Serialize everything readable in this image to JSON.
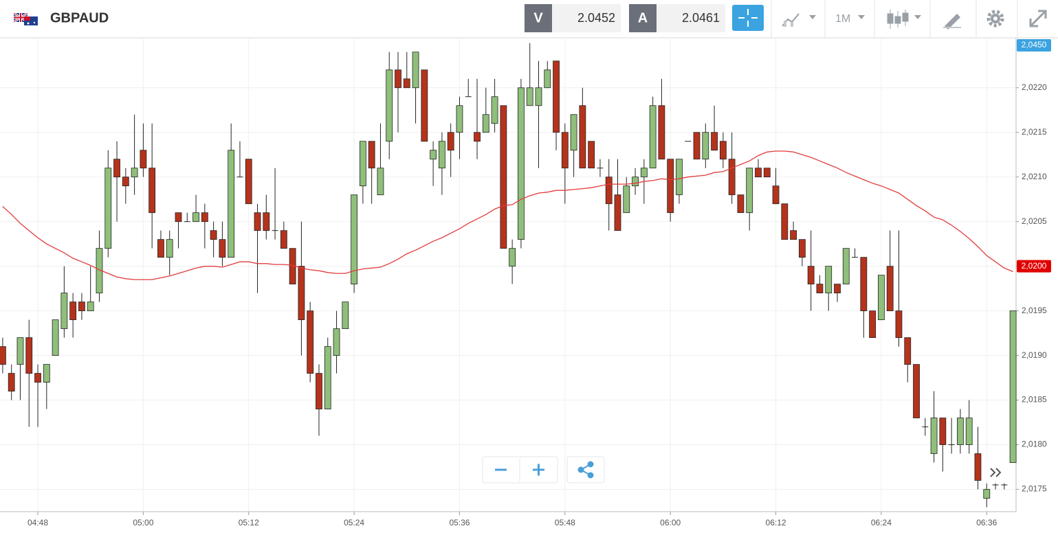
{
  "header": {
    "symbol": "GBPAUD",
    "sell_label": "V",
    "sell_price": 2.0452,
    "buy_label": "A",
    "buy_price": 2.0461,
    "timeframe": "1M"
  },
  "chart_data": {
    "type": "candlestick",
    "categories": [
      null,
      null,
      null,
      null,
      "04:48",
      null,
      null,
      null,
      null,
      null,
      null,
      null,
      null,
      null,
      null,
      null,
      "05:00",
      null,
      null,
      null,
      null,
      null,
      null,
      null,
      null,
      null,
      null,
      null,
      "05:12",
      null,
      null,
      null,
      null,
      null,
      null,
      null,
      null,
      null,
      null,
      null,
      "05:24",
      null,
      null,
      null,
      null,
      null,
      null,
      null,
      null,
      null,
      null,
      null,
      "05:36",
      null,
      null,
      null,
      null,
      null,
      null,
      null,
      null,
      null,
      null,
      null,
      "05:48",
      null,
      null,
      null,
      null,
      null,
      null,
      null,
      null,
      null,
      null,
      null,
      "06:00",
      null,
      null,
      null,
      null,
      null,
      null,
      null,
      null,
      null,
      null,
      null,
      "06:12",
      null,
      null,
      null,
      null,
      null,
      null,
      null,
      null,
      null,
      null,
      null,
      "06:24",
      null,
      null,
      null,
      null,
      null,
      null,
      null,
      null,
      null,
      null,
      null,
      "06:36",
      null,
      null,
      null
    ],
    "open": [
      2.0191,
      2.0188,
      2.0189,
      2.0192,
      2.0188,
      2.0187,
      2.019,
      2.0193,
      2.0196,
      2.0196,
      2.0195,
      2.0197,
      2.0202,
      2.0212,
      2.021,
      2.021,
      2.0213,
      2.0211,
      2.0203,
      2.0201,
      2.0206,
      2.0205,
      2.0205,
      2.0206,
      2.0204,
      2.0203,
      2.0201,
      2.021,
      2.0212,
      2.0206,
      2.0206,
      2.0204,
      2.0204,
      2.0202,
      2.02,
      2.0195,
      2.0188,
      2.0184,
      2.019,
      2.0193,
      2.0198,
      2.0209,
      2.0214,
      2.0208,
      2.0214,
      2.0222,
      2.0221,
      2.022,
      2.0222,
      2.0212,
      2.0211,
      2.0215,
      2.0215,
      2.0219,
      2.0215,
      2.0215,
      2.0216,
      2.0218,
      2.02,
      2.0203,
      2.0218,
      2.0218,
      2.022,
      2.0223,
      2.0215,
      2.0213,
      2.0218,
      2.0214,
      2.0211,
      2.021,
      2.0208,
      2.0206,
      2.0209,
      2.021,
      2.0211,
      2.0218,
      2.0212,
      2.0208,
      2.0214,
      2.0215,
      2.0212,
      2.0215,
      2.0214,
      2.0212,
      2.0208,
      2.0206,
      2.0211,
      2.0211,
      2.0209,
      2.0207,
      2.0204,
      2.0203,
      2.02,
      2.0198,
      2.0197,
      2.0198,
      2.0198,
      2.0201,
      2.0201,
      2.0195,
      2.0194,
      2.02,
      2.0195,
      2.0192,
      2.0189,
      2.0182,
      2.0179,
      2.0183,
      2.018,
      2.018,
      2.018,
      2.0179,
      2.0174,
      2.01755,
      2.01755,
      2.0178
    ],
    "high": [
      2.0192,
      2.0189,
      2.0192,
      2.0194,
      2.0189,
      2.0189,
      2.0194,
      2.02,
      2.0197,
      2.0197,
      2.02,
      2.0204,
      2.0213,
      2.0214,
      2.0211,
      2.0217,
      2.0216,
      2.0216,
      2.0204,
      2.0204,
      2.0206,
      2.0206,
      2.0208,
      2.0207,
      2.0205,
      2.0205,
      2.0216,
      2.0214,
      2.0212,
      2.0207,
      2.0208,
      2.0211,
      2.0205,
      2.0202,
      2.0205,
      2.0196,
      2.0189,
      2.0192,
      2.0195,
      2.0196,
      2.0208,
      2.0214,
      2.0214,
      2.0216,
      2.0224,
      2.0224,
      2.0224,
      2.0224,
      2.0222,
      2.0214,
      2.0215,
      2.0216,
      2.0219,
      2.0221,
      2.0221,
      2.022,
      2.0221,
      2.0218,
      2.0203,
      2.0221,
      2.0225,
      2.0223,
      2.0223,
      2.0223,
      2.0216,
      2.0217,
      2.022,
      2.0214,
      2.0212,
      2.0212,
      2.0212,
      2.021,
      2.0211,
      2.0212,
      2.0219,
      2.0221,
      2.0212,
      2.0212,
      2.0214,
      2.0215,
      2.0216,
      2.0218,
      2.0215,
      2.0215,
      2.0208,
      2.0211,
      2.0212,
      2.0211,
      2.0211,
      2.0207,
      2.0205,
      2.0203,
      2.0204,
      2.0199,
      2.02,
      2.0198,
      2.0202,
      2.0202,
      2.0201,
      2.0195,
      2.0199,
      2.0204,
      2.0204,
      2.0192,
      2.0189,
      2.0183,
      2.0186,
      2.0183,
      2.0183,
      2.0184,
      2.0185,
      2.0182,
      2.0176,
      2.0176,
      2.0176,
      2.0195
    ],
    "low": [
      2.0188,
      2.0185,
      2.0185,
      2.0182,
      2.0182,
      2.0184,
      2.019,
      2.0192,
      2.0192,
      2.0194,
      2.0195,
      2.0196,
      2.0201,
      2.0205,
      2.0207,
      2.0208,
      2.021,
      2.0202,
      2.0201,
      2.0199,
      2.0202,
      2.0205,
      2.0205,
      2.0202,
      2.0201,
      2.02,
      2.0201,
      2.021,
      2.0207,
      2.0197,
      2.0203,
      2.0203,
      2.0202,
      2.0198,
      2.019,
      2.0187,
      2.0181,
      2.0184,
      2.0188,
      2.0193,
      2.0197,
      2.0207,
      2.0207,
      2.0208,
      2.0212,
      2.0215,
      2.022,
      2.0216,
      2.0214,
      2.0209,
      2.0208,
      2.021,
      2.0212,
      2.0219,
      2.0212,
      2.0215,
      2.0215,
      2.0202,
      2.0198,
      2.0202,
      2.0218,
      2.0211,
      2.022,
      2.0213,
      2.0207,
      2.021,
      2.0211,
      2.0211,
      2.021,
      2.0204,
      2.0204,
      2.0206,
      2.0208,
      2.0207,
      2.0211,
      2.0212,
      2.0205,
      2.0207,
      2.0214,
      2.0212,
      2.0211,
      2.0213,
      2.0211,
      2.0207,
      2.0206,
      2.0204,
      2.021,
      2.021,
      2.0207,
      2.0203,
      2.0203,
      2.02,
      2.0195,
      2.0197,
      2.0195,
      2.0196,
      2.0198,
      2.0201,
      2.0192,
      2.0192,
      2.0194,
      2.0195,
      2.0191,
      2.0187,
      2.0183,
      2.0181,
      2.0178,
      2.0177,
      2.0179,
      2.0179,
      2.0179,
      2.0175,
      2.0173,
      2.0175,
      2.0175,
      2.0178
    ],
    "close": [
      2.0189,
      2.0186,
      2.0192,
      2.0188,
      2.0187,
      2.0189,
      2.0194,
      2.0197,
      2.0194,
      2.0195,
      2.0196,
      2.0202,
      2.0211,
      2.021,
      2.0209,
      2.0211,
      2.0211,
      2.0206,
      2.0201,
      2.0203,
      2.0205,
      2.0205,
      2.0206,
      2.0205,
      2.0203,
      2.0201,
      2.0213,
      2.021,
      2.0207,
      2.0204,
      2.0204,
      2.0204,
      2.0202,
      2.0198,
      2.0194,
      2.0188,
      2.0184,
      2.0191,
      2.0193,
      2.0196,
      2.0208,
      2.0214,
      2.0211,
      2.0211,
      2.0222,
      2.022,
      2.022,
      2.0224,
      2.0214,
      2.0213,
      2.0214,
      2.0213,
      2.0218,
      2.0219,
      2.0214,
      2.0217,
      2.0219,
      2.0202,
      2.0202,
      2.022,
      2.022,
      2.022,
      2.0222,
      2.0215,
      2.0211,
      2.0217,
      2.0211,
      2.0211,
      2.0211,
      2.0207,
      2.0204,
      2.0209,
      2.021,
      2.0211,
      2.0218,
      2.0212,
      2.0206,
      2.0212,
      2.0214,
      2.0212,
      2.0215,
      2.0213,
      2.0212,
      2.0208,
      2.0206,
      2.0211,
      2.021,
      2.021,
      2.0207,
      2.0203,
      2.0203,
      2.0201,
      2.0198,
      2.0197,
      2.02,
      2.0197,
      2.0202,
      2.0201,
      2.0195,
      2.0192,
      2.0199,
      2.0195,
      2.0192,
      2.0189,
      2.0183,
      2.0182,
      2.0183,
      2.018,
      2.018,
      2.0183,
      2.0183,
      2.0176,
      2.0175,
      2.01755,
      2.01755,
      2.0195
    ],
    "up_color": "#8fbf7a",
    "down_color": "#b5331c",
    "moving_average": {
      "color": "#e23b3b",
      "values": [
        2.02067,
        2.02058,
        2.02048,
        2.0204,
        2.02032,
        2.02025,
        2.0202,
        2.02015,
        2.02009,
        2.02005,
        2.02001,
        2.01996,
        2.01992,
        2.01988,
        2.01986,
        2.01985,
        2.01985,
        2.01985,
        2.01987,
        2.01989,
        2.01992,
        2.01995,
        2.01998,
        2.02,
        2.02,
        2.01999,
        2.02002,
        2.02005,
        2.02005,
        2.02003,
        2.02003,
        2.02002,
        2.02002,
        2.02001,
        2.01998,
        2.01996,
        2.01995,
        2.01993,
        2.01992,
        2.01992,
        2.01995,
        2.01997,
        2.01998,
        2.01999,
        2.02003,
        2.02008,
        2.02014,
        2.02018,
        2.02023,
        2.02028,
        2.02032,
        2.02037,
        2.02042,
        2.02048,
        2.02053,
        2.02058,
        2.02064,
        2.02068,
        2.02069,
        2.02075,
        2.02079,
        2.02082,
        2.02083,
        2.02085,
        2.02085,
        2.02086,
        2.02087,
        2.02088,
        2.0209,
        2.02092,
        2.02092,
        2.02092,
        2.02093,
        2.02095,
        2.02096,
        2.02098,
        2.02097,
        2.02098,
        2.021,
        2.02101,
        2.02102,
        2.02105,
        2.02106,
        2.0211,
        2.02114,
        2.02118,
        2.02124,
        2.02128,
        2.02129,
        2.02129,
        2.02128,
        2.02125,
        2.02122,
        2.02118,
        2.02114,
        2.0211,
        2.02105,
        2.02101,
        2.02097,
        2.02093,
        2.0209,
        2.02086,
        2.02082,
        2.02075,
        2.02068,
        2.02062,
        2.02055,
        2.02052,
        2.02046,
        2.02039,
        2.02031,
        2.02022,
        2.02012,
        2.02005,
        2.01998,
        2.01994
      ]
    },
    "ylim": [
      2.01725,
      2.02256
    ],
    "yticks": [
      {
        "value": 2.0175,
        "label": "2,0175"
      },
      {
        "value": 2.018,
        "label": "2,0180"
      },
      {
        "value": 2.0185,
        "label": "2,0185"
      },
      {
        "value": 2.019,
        "label": "2,0190"
      },
      {
        "value": 2.0195,
        "label": "2,0195"
      },
      {
        "value": 2.02,
        "label": "2,0200"
      },
      {
        "value": 2.0205,
        "label": "2,0205"
      },
      {
        "value": 2.021,
        "label": "2,0210"
      },
      {
        "value": 2.0215,
        "label": "2,0215"
      },
      {
        "value": 2.022,
        "label": "2,0220"
      }
    ],
    "grid": true,
    "price_tags": [
      {
        "label": "2,0450",
        "color": "#3ba3e0"
      },
      {
        "value": 2.02,
        "label": "2,0200",
        "color": "#e00000"
      }
    ]
  }
}
